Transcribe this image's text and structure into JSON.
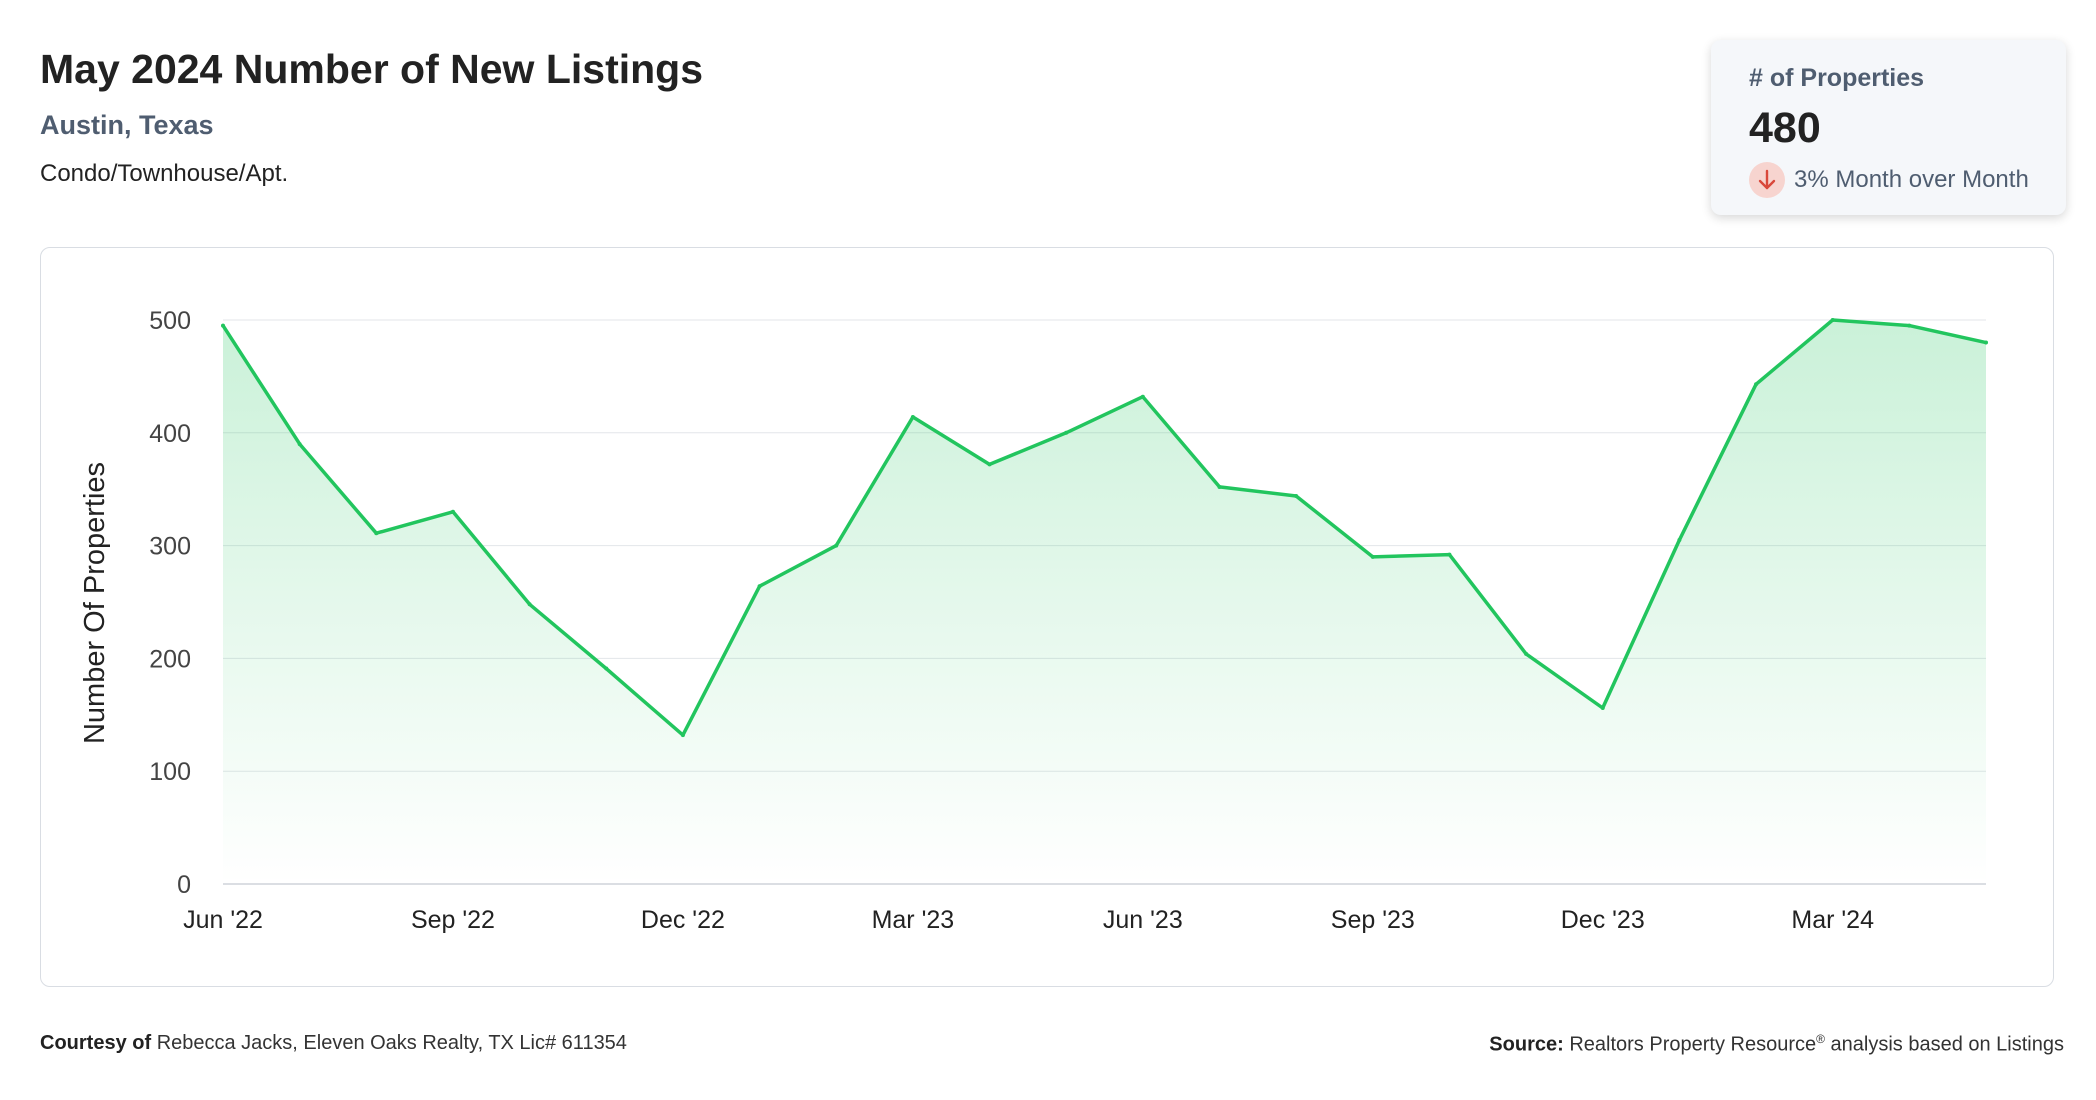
{
  "header": {
    "title": "May 2024 Number of New Listings",
    "location": "Austin, Texas",
    "property_type": "Condo/Townhouse/Apt."
  },
  "stat_card": {
    "label": "# of Properties",
    "value": "480",
    "change_text": "3% Month over Month",
    "change_direction": "down",
    "change_color": "#d9483b",
    "icon": "arrow-down-icon"
  },
  "chart_data": {
    "type": "area",
    "ylabel": "Number Of Properties",
    "xlabel": "",
    "x": [
      "Jun '22",
      "Jul '22",
      "Aug '22",
      "Sep '22",
      "Oct '22",
      "Nov '22",
      "Dec '22",
      "Jan '23",
      "Feb '23",
      "Mar '23",
      "Apr '23",
      "May '23",
      "Jun '23",
      "Jul '23",
      "Aug '23",
      "Sep '23",
      "Oct '23",
      "Nov '23",
      "Dec '23",
      "Jan '24",
      "Feb '24",
      "Mar '24",
      "Apr '24",
      "May '24"
    ],
    "series": [
      {
        "values": [
          495,
          390,
          311,
          330,
          248,
          191,
          132,
          264,
          300,
          414,
          372,
          400,
          432,
          352,
          344,
          290,
          292,
          204,
          156,
          305,
          443,
          500,
          495,
          480
        ]
      }
    ],
    "x_ticks": [
      "Jun '22",
      "Sep '22",
      "Dec '22",
      "Mar '23",
      "Jun '23",
      "Sep '23",
      "Dec '23",
      "Mar '24"
    ],
    "y_ticks": [
      "0",
      "100",
      "200",
      "300",
      "400",
      "500"
    ],
    "ylim": [
      0,
      500
    ],
    "grid": true,
    "line_color": "#22c55e",
    "fill_color": "#22c55e"
  },
  "footer": {
    "courtesy_label": "Courtesy of",
    "courtesy_text": "Rebecca Jacks, Eleven Oaks Realty, TX Lic# 611354",
    "source_label": "Source:",
    "source_name": "Realtors Property Resource",
    "source_mark": "®",
    "source_text": "analysis based on Listings"
  }
}
